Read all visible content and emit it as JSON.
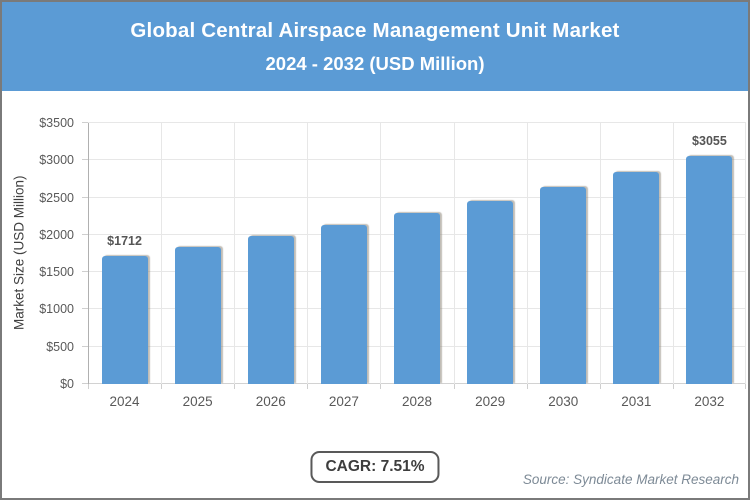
{
  "header": {
    "title_line1": "Global Central Airspace Management Unit Market",
    "title_line2": "2024 - 2032 (USD Million)",
    "bg_color": "#5B9BD5",
    "text_color": "#FFFFFF"
  },
  "chart_data": {
    "type": "bar",
    "title": "Global Central Airspace Management Unit Market 2024 - 2032 (USD Million)",
    "categories": [
      "2024",
      "2025",
      "2026",
      "2027",
      "2028",
      "2029",
      "2030",
      "2031",
      "2032"
    ],
    "values": [
      1712,
      1841,
      1979,
      2128,
      2287,
      2459,
      2644,
      2842,
      3055
    ],
    "value_labels": [
      "$1712",
      null,
      null,
      null,
      null,
      null,
      null,
      null,
      "$3055"
    ],
    "xlabel": "",
    "ylabel": "Market Size (USD Million)",
    "ylim": [
      0,
      3500
    ],
    "y_ticks": [
      0,
      500,
      1000,
      1500,
      2000,
      2500,
      3000,
      3500
    ],
    "y_tick_labels": [
      "$0",
      "$500",
      "$1000",
      "$1500",
      "$2000",
      "$2500",
      "$3000",
      "$3500"
    ],
    "grid": "both",
    "legend": "none",
    "bar_color": "#5B9BD5"
  },
  "footer": {
    "cagr_label": "CAGR: 7.51%",
    "source": "Source: Syndicate Market Research"
  }
}
